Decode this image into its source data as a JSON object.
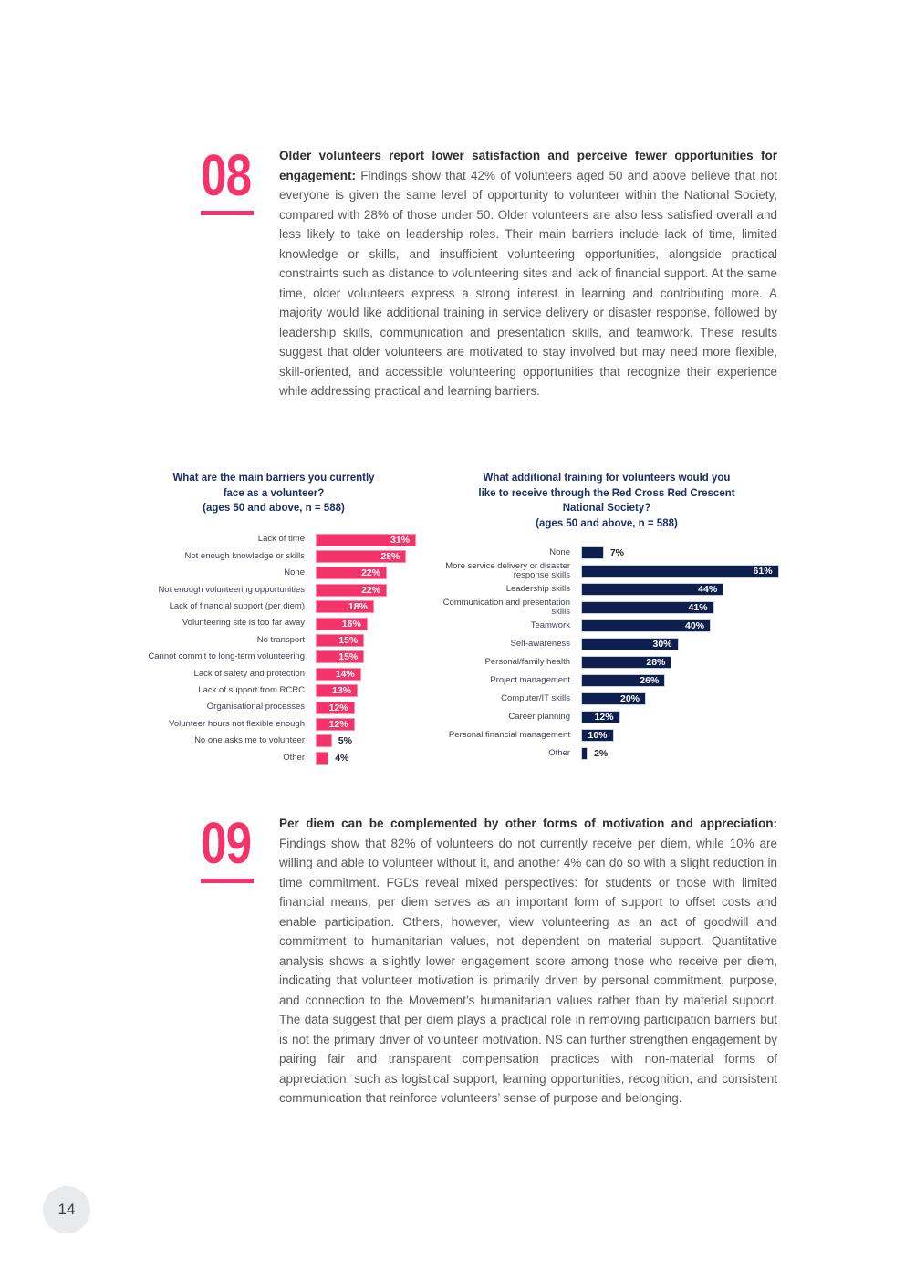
{
  "page": {
    "number": "14"
  },
  "colors": {
    "accent_pink": "#F5336B",
    "navy_bar": "#0F1F4D",
    "navy_title": "#1B2F66",
    "body_text": "#57585A",
    "badge_bg": "#E9EAEC"
  },
  "findings": [
    {
      "id": "08",
      "lead": "Older volunteers report lower satisfaction and perceive fewer opportunities for engagement: ",
      "body": "Findings show that 42% of volunteers aged 50 and above believe that not everyone is given the same level of opportunity to volunteer within the National Society, compared with 28% of those under 50. Older volunteers are also less satisfied overall and less likely to take on leadership roles. Their main barriers include lack of time, limited knowledge or skills, and insufficient volunteering opportunities, alongside practical constraints such as distance to volunteering sites and lack of financial support. At the same time, older volunteers express a strong interest in learning and contributing more. A majority would like additional training in service delivery or disaster response, followed by leadership skills, communication and presentation skills, and teamwork. These results suggest that older volunteers are motivated to stay involved but may need more flexible, skill-oriented, and accessible volunteering opportunities that recognize their experience while addressing practical and learning barriers."
    },
    {
      "id": "09",
      "lead": "Per diem can be complemented by other forms of motivation and appreciation: ",
      "body": "Findings show that 82% of volunteers do not currently receive per diem, while 10% are willing and able to volunteer without it, and another 4% can do so with a slight reduction in time commitment. FGDs reveal mixed perspectives: for students or those with limited financial means, per diem serves as an important form of support to offset costs and enable participation. Others, however, view volunteering as an act of goodwill and commitment to humanitarian values, not dependent on material support. Quantitative analysis shows a slightly lower engagement score among those who receive per diem, indicating that volunteer motivation is primarily driven by personal commitment, purpose, and connection to the Movement’s humanitarian values rather than by material support. The data suggest that per diem plays a practical role in removing participation barriers but is not the primary driver of volunteer motivation. NS can further strengthen engagement by pairing fair and transparent compensation practices with non-material forms of appreciation, such as logistical support, learning opportunities, recognition, and consistent communication that reinforce volunteers’ sense of purpose and belonging."
    }
  ],
  "chart_data": [
    {
      "type": "bar",
      "orientation": "horizontal",
      "title": "What are the main barriers you currently\nface as a volunteer?",
      "subtitle": "(ages 50 and above, n = 588)",
      "categories": [
        "Lack of time",
        "Not enough knowledge or skills",
        "None",
        "Not enough volunteering opportunities",
        "Lack of financial support (per diem)",
        "Volunteering site is too far away",
        "No transport",
        "Cannot commit to long-term volunteering",
        "Lack of safety and protection",
        "Lack of support from RCRC",
        "Organisational processes",
        "Volunteer hours not flexible enough",
        "No one asks me to volunteer",
        "Other"
      ],
      "values": [
        31,
        28,
        22,
        22,
        18,
        16,
        15,
        15,
        14,
        13,
        12,
        12,
        5,
        4
      ],
      "value_suffix": "%",
      "bar_color": "#F5336B",
      "bar_border": "#FA8FAC",
      "xlim": [
        0,
        31
      ],
      "grid": false,
      "legend": "none",
      "value_labels": "on bars"
    },
    {
      "type": "bar",
      "orientation": "horizontal",
      "title": "What additional training for volunteers would you\nlike to receive through the Red Cross Red Crescent\nNational Society?",
      "subtitle": "(ages 50 and above, n = 588)",
      "categories": [
        "None",
        "More service delivery or disaster response skills",
        "Leadership skills",
        "Communication and presentation skills",
        "Teamwork",
        "Self-awareness",
        "Personal/family health",
        "Project management",
        "Computer/IT skills",
        "Career planning",
        "Personal financial management",
        "Other"
      ],
      "values": [
        7,
        61,
        44,
        41,
        40,
        30,
        28,
        26,
        20,
        12,
        10,
        2
      ],
      "value_suffix": "%",
      "bar_color": "#0F1F4D",
      "bar_border": "#C9D1E0",
      "xlim": [
        0,
        61
      ],
      "grid": false,
      "legend": "none",
      "value_labels": "on bars"
    }
  ]
}
